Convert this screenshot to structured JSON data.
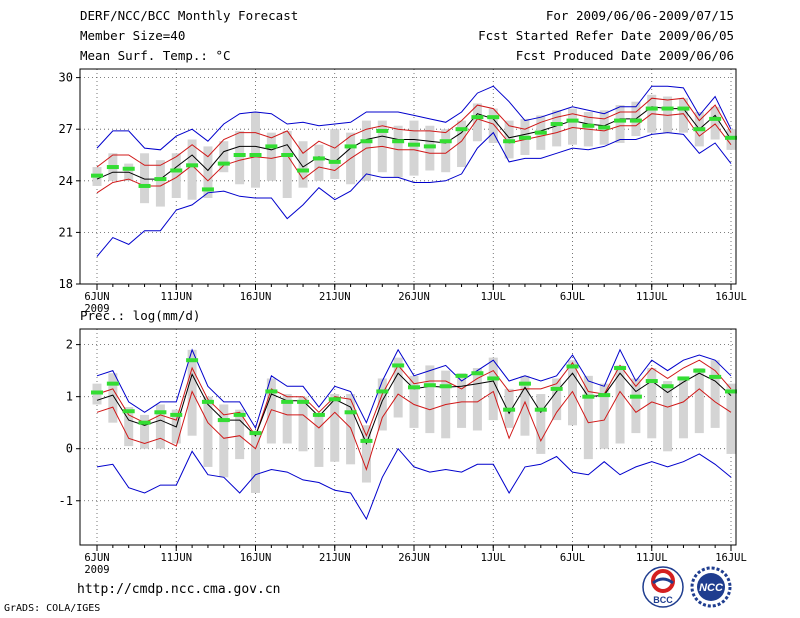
{
  "header": {
    "title": "DERF/NCC/BCC Monthly Forecast",
    "member_size": "Member Size=40",
    "variable": "Mean Surf. Temp.: °C",
    "period": "For 2009/06/06-2009/07/15",
    "started": "Fcst Started Refer Date 2009/06/05",
    "produced": "Fcst Produced Date 2009/06/06"
  },
  "footer": {
    "url": "http://cmdp.ncc.cma.gov.cn",
    "credit": "GrADS: COLA/IGES",
    "logo_bcc_text": "BCC",
    "logo_ncc_text": "NCC"
  },
  "colors": {
    "envelope": "#0000cc",
    "spread": "#d01818",
    "mean": "#000000",
    "box": "#d4d4d4",
    "median": "#33dd33"
  },
  "chart_data": [
    {
      "type": "line",
      "title": "",
      "ylabel": "Mean Surf. Temp.: °C",
      "ylim": [
        18,
        30.5
      ],
      "yticks": [
        18,
        21,
        24,
        27,
        30
      ],
      "ytick_labels": [
        "18",
        "21",
        "24",
        "27",
        "30"
      ],
      "xticks": [
        0,
        5,
        10,
        15,
        20,
        25,
        30,
        35,
        40
      ],
      "xtick_labels": [
        "6JUN",
        "11JUN",
        "16JUN",
        "21JUN",
        "26JUN",
        "1JUL",
        "6JUL",
        "11JUL",
        "16JUL"
      ],
      "year_label": "2009",
      "series": [
        {
          "name": "max",
          "values": [
            25.9,
            26.9,
            26.9,
            25.9,
            25.8,
            26.6,
            27.0,
            26.3,
            27.3,
            27.9,
            28.0,
            27.9,
            27.3,
            27.4,
            27.2,
            27.3,
            27.4,
            28.0,
            28.0,
            28.0,
            27.8,
            27.6,
            27.4,
            28.0,
            29.1,
            29.5,
            28.6,
            27.5,
            27.7,
            28.0,
            28.3,
            28.1,
            27.9,
            28.3,
            28.3,
            29.5,
            29.5,
            29.4,
            27.8,
            28.9,
            27.0
          ]
        },
        {
          "name": "upper",
          "values": [
            24.8,
            25.5,
            25.5,
            24.9,
            24.9,
            25.4,
            26.1,
            25.4,
            26.4,
            26.8,
            26.8,
            26.5,
            26.9,
            25.6,
            26.3,
            25.9,
            26.6,
            27.0,
            27.2,
            27.0,
            26.9,
            26.9,
            26.8,
            27.5,
            28.4,
            28.2,
            27.2,
            27.0,
            27.4,
            27.7,
            27.9,
            27.7,
            27.6,
            28.0,
            28.0,
            28.8,
            28.7,
            28.8,
            27.5,
            28.4,
            26.8
          ]
        },
        {
          "name": "mean",
          "values": [
            24.1,
            24.5,
            24.5,
            24.1,
            24.1,
            24.8,
            25.5,
            24.6,
            25.7,
            26.0,
            26.0,
            25.8,
            26.1,
            24.8,
            25.4,
            25.1,
            25.9,
            26.4,
            26.6,
            26.4,
            26.4,
            26.3,
            26.2,
            26.8,
            27.9,
            27.6,
            26.5,
            26.7,
            26.9,
            27.2,
            27.5,
            27.3,
            27.2,
            27.6,
            27.6,
            28.3,
            28.2,
            28.2,
            27.0,
            27.8,
            26.4
          ]
        },
        {
          "name": "lower",
          "values": [
            23.3,
            23.9,
            24.1,
            23.7,
            23.7,
            24.2,
            24.9,
            24.0,
            24.9,
            25.2,
            25.4,
            25.3,
            25.5,
            24.1,
            24.8,
            24.6,
            25.3,
            25.9,
            26.0,
            25.8,
            25.8,
            25.6,
            25.6,
            26.3,
            27.6,
            27.3,
            26.2,
            26.4,
            26.6,
            26.8,
            27.1,
            27.0,
            26.9,
            27.2,
            27.2,
            27.9,
            27.8,
            27.9,
            26.6,
            27.3,
            26.1
          ]
        },
        {
          "name": "min",
          "values": [
            19.6,
            20.7,
            20.3,
            21.1,
            21.1,
            22.3,
            22.6,
            23.3,
            23.4,
            23.1,
            23.0,
            23.0,
            21.8,
            22.6,
            23.6,
            22.9,
            23.4,
            24.4,
            24.2,
            24.2,
            23.9,
            23.9,
            24.0,
            24.4,
            25.9,
            26.8,
            25.1,
            25.3,
            25.3,
            25.6,
            25.9,
            25.8,
            26.0,
            26.4,
            26.4,
            26.7,
            26.8,
            26.7,
            25.6,
            26.2,
            25.0
          ]
        }
      ],
      "boxes": [
        {
          "low": 23.7,
          "high": 24.8
        },
        {
          "low": 24.0,
          "high": 25.6
        },
        {
          "low": 24.0,
          "high": 25.0
        },
        {
          "low": 22.7,
          "high": 25.6
        },
        {
          "low": 22.5,
          "high": 25.2
        },
        {
          "low": 23.0,
          "high": 25.6
        },
        {
          "low": 22.9,
          "high": 26.4
        },
        {
          "low": 23.0,
          "high": 26.0
        },
        {
          "low": 24.5,
          "high": 26.3
        },
        {
          "low": 23.8,
          "high": 26.9
        },
        {
          "low": 23.6,
          "high": 28.0
        },
        {
          "low": 24.0,
          "high": 26.8
        },
        {
          "low": 23.0,
          "high": 26.9
        },
        {
          "low": 23.6,
          "high": 26.3
        },
        {
          "low": 24.0,
          "high": 26.1
        },
        {
          "low": 24.1,
          "high": 27.0
        },
        {
          "low": 23.8,
          "high": 26.8
        },
        {
          "low": 24.0,
          "high": 27.5
        },
        {
          "low": 24.5,
          "high": 27.5
        },
        {
          "low": 24.2,
          "high": 27.2
        },
        {
          "low": 24.3,
          "high": 27.5
        },
        {
          "low": 24.6,
          "high": 27.2
        },
        {
          "low": 24.5,
          "high": 27.0
        },
        {
          "low": 24.8,
          "high": 27.5
        },
        {
          "low": 26.3,
          "high": 28.5
        },
        {
          "low": 26.2,
          "high": 28.2
        },
        {
          "low": 25.3,
          "high": 27.5
        },
        {
          "low": 25.5,
          "high": 27.6
        },
        {
          "low": 25.8,
          "high": 27.8
        },
        {
          "low": 26.0,
          "high": 28.1
        },
        {
          "low": 26.1,
          "high": 28.2
        },
        {
          "low": 26.0,
          "high": 28.0
        },
        {
          "low": 26.1,
          "high": 28.1
        },
        {
          "low": 26.2,
          "high": 28.4
        },
        {
          "low": 26.6,
          "high": 28.6
        },
        {
          "low": 26.8,
          "high": 29.0
        },
        {
          "low": 26.8,
          "high": 28.9
        },
        {
          "low": 26.8,
          "high": 28.8
        },
        {
          "low": 26.0,
          "high": 28.0
        },
        {
          "low": 26.4,
          "high": 28.3
        },
        {
          "low": 25.8,
          "high": 27.0
        }
      ],
      "median": [
        24.3,
        24.8,
        24.7,
        23.7,
        24.1,
        24.6,
        24.9,
        23.5,
        25.0,
        25.5,
        25.5,
        26.0,
        25.5,
        24.6,
        25.3,
        25.1,
        26.0,
        26.3,
        26.9,
        26.3,
        26.1,
        26.0,
        26.3,
        27.0,
        27.7,
        27.7,
        26.3,
        26.5,
        26.8,
        27.3,
        27.5,
        27.2,
        27.1,
        27.5,
        27.5,
        28.2,
        28.2,
        28.2,
        27.0,
        27.6,
        26.5
      ]
    },
    {
      "type": "line",
      "title": "Prec.: log(mm/d)",
      "ylabel": "Prec.: log(mm/d)",
      "ylim": [
        -1.85,
        2.3
      ],
      "yticks": [
        -1,
        0,
        1,
        2
      ],
      "ytick_labels": [
        "-1",
        "0",
        "1",
        "2"
      ],
      "xticks": [
        0,
        5,
        10,
        15,
        20,
        25,
        30,
        35,
        40
      ],
      "xtick_labels": [
        "6JUN",
        "11JUN",
        "16JUN",
        "21JUN",
        "26JUN",
        "1JUL",
        "6JUL",
        "11JUL",
        "16JUL"
      ],
      "year_label": "2009",
      "series": [
        {
          "name": "max",
          "values": [
            1.4,
            1.5,
            0.9,
            0.7,
            0.9,
            0.9,
            1.9,
            1.2,
            0.9,
            0.9,
            0.4,
            1.4,
            1.2,
            1.2,
            0.8,
            1.2,
            1.1,
            0.5,
            1.3,
            1.9,
            1.4,
            1.5,
            1.6,
            1.3,
            1.5,
            1.7,
            1.3,
            1.4,
            1.3,
            1.4,
            1.8,
            1.3,
            1.2,
            1.9,
            1.3,
            1.7,
            1.5,
            1.7,
            1.8,
            1.7,
            1.4
          ]
        },
        {
          "name": "upper",
          "values": [
            1.05,
            1.15,
            0.65,
            0.5,
            0.65,
            0.55,
            1.55,
            0.95,
            0.65,
            0.7,
            0.25,
            1.15,
            1.0,
            1.0,
            0.7,
            1.0,
            0.95,
            0.25,
            1.05,
            1.6,
            1.25,
            1.3,
            1.3,
            1.15,
            1.35,
            1.5,
            1.1,
            1.15,
            1.15,
            1.25,
            1.65,
            1.1,
            1.05,
            1.6,
            1.2,
            1.55,
            1.35,
            1.55,
            1.7,
            1.5,
            1.15
          ]
        },
        {
          "name": "mean",
          "values": [
            0.93,
            1.03,
            0.55,
            0.45,
            0.55,
            0.42,
            1.43,
            0.85,
            0.55,
            0.55,
            0.25,
            1.05,
            0.92,
            0.92,
            0.62,
            0.95,
            0.8,
            0.1,
            0.92,
            1.45,
            1.15,
            1.2,
            1.18,
            1.2,
            1.25,
            1.3,
            0.68,
            1.18,
            0.7,
            1.1,
            1.45,
            1.0,
            1.03,
            1.45,
            1.1,
            1.3,
            1.08,
            1.28,
            1.45,
            1.3,
            1.02
          ]
        },
        {
          "name": "lower",
          "values": [
            0.7,
            0.8,
            0.2,
            0.1,
            0.2,
            0.05,
            1.1,
            0.5,
            0.2,
            0.25,
            0.0,
            0.75,
            0.65,
            0.65,
            0.4,
            0.7,
            0.4,
            -0.4,
            0.6,
            1.05,
            0.85,
            0.75,
            0.85,
            0.9,
            0.9,
            1.1,
            0.2,
            0.9,
            0.15,
            0.7,
            1.1,
            0.5,
            0.55,
            1.1,
            0.7,
            0.9,
            0.8,
            0.9,
            1.15,
            0.9,
            0.7
          ]
        },
        {
          "name": "min",
          "values": [
            -0.35,
            -0.3,
            -0.75,
            -0.85,
            -0.7,
            -0.7,
            -0.05,
            -0.5,
            -0.55,
            -0.85,
            -0.5,
            -0.4,
            -0.45,
            -0.6,
            -0.65,
            -0.8,
            -0.85,
            -1.35,
            -0.55,
            0.0,
            -0.35,
            -0.45,
            -0.4,
            -0.45,
            -0.3,
            -0.3,
            -0.85,
            -0.35,
            -0.3,
            -0.15,
            -0.45,
            -0.5,
            -0.25,
            -0.5,
            -0.35,
            -0.25,
            -0.35,
            -0.25,
            -0.1,
            -0.3,
            -0.55
          ]
        }
      ],
      "boxes": [
        {
          "low": 0.85,
          "high": 1.25
        },
        {
          "low": 0.5,
          "high": 1.45
        },
        {
          "low": 0.05,
          "high": 0.8
        },
        {
          "low": 0.0,
          "high": 0.65
        },
        {
          "low": 0.0,
          "high": 0.85
        },
        {
          "low": 0.1,
          "high": 0.75
        },
        {
          "low": 0.25,
          "high": 1.9
        },
        {
          "low": -0.35,
          "high": 1.0
        },
        {
          "low": -0.55,
          "high": 0.85
        },
        {
          "low": -0.2,
          "high": 0.75
        },
        {
          "low": -0.85,
          "high": 0.35
        },
        {
          "low": 0.1,
          "high": 1.35
        },
        {
          "low": 0.1,
          "high": 1.05
        },
        {
          "low": -0.05,
          "high": 1.0
        },
        {
          "low": -0.35,
          "high": 0.65
        },
        {
          "low": -0.25,
          "high": 1.05
        },
        {
          "low": -0.3,
          "high": 1.05
        },
        {
          "low": -0.65,
          "high": 0.45
        },
        {
          "low": 0.35,
          "high": 1.35
        },
        {
          "low": 0.6,
          "high": 1.75
        },
        {
          "low": 0.4,
          "high": 1.4
        },
        {
          "low": 0.3,
          "high": 1.6
        },
        {
          "low": 0.2,
          "high": 1.5
        },
        {
          "low": 0.4,
          "high": 1.45
        },
        {
          "low": 0.35,
          "high": 1.55
        },
        {
          "low": 0.55,
          "high": 1.75
        },
        {
          "low": 0.4,
          "high": 1.15
        },
        {
          "low": 0.25,
          "high": 1.4
        },
        {
          "low": -0.1,
          "high": 1.05
        },
        {
          "low": 0.55,
          "high": 1.35
        },
        {
          "low": 0.45,
          "high": 1.7
        },
        {
          "low": -0.2,
          "high": 1.4
        },
        {
          "low": 0.0,
          "high": 1.25
        },
        {
          "low": 0.1,
          "high": 1.6
        },
        {
          "low": 0.3,
          "high": 1.35
        },
        {
          "low": 0.2,
          "high": 1.55
        },
        {
          "low": -0.05,
          "high": 1.3
        },
        {
          "low": 0.2,
          "high": 1.35
        },
        {
          "low": 0.3,
          "high": 1.55
        },
        {
          "low": 0.4,
          "high": 1.7
        },
        {
          "low": -0.1,
          "high": 1.25
        }
      ],
      "median": [
        1.08,
        1.25,
        0.72,
        0.5,
        0.7,
        0.65,
        1.7,
        0.9,
        0.55,
        0.65,
        0.3,
        1.1,
        0.9,
        0.9,
        0.65,
        0.95,
        0.7,
        0.15,
        1.1,
        1.6,
        1.18,
        1.22,
        1.2,
        1.4,
        1.45,
        1.35,
        0.75,
        1.25,
        0.75,
        1.15,
        1.58,
        1.0,
        1.03,
        1.55,
        1.0,
        1.3,
        1.2,
        1.35,
        1.5,
        1.38,
        1.1
      ]
    }
  ]
}
